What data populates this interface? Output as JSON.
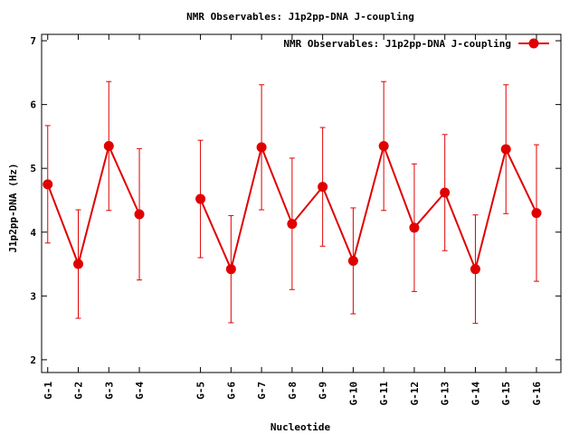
{
  "chart_data": {
    "type": "line",
    "title": "NMR Observables: J1p2pp-DNA J-coupling",
    "xlabel": "Nucleotide",
    "ylabel": "J1p2pp-DNA (Hz)",
    "ylim": [
      1.8,
      7.1
    ],
    "yticks": [
      2,
      3,
      4,
      5,
      6,
      7
    ],
    "grid": false,
    "legend_position": "top-right",
    "series_color": "#e00000",
    "series": [
      {
        "name": "NMR Observables: J1p2pp-DNA J-coupling",
        "segments": [
          [
            {
              "x": 1,
              "label": "G-1",
              "y": 4.75,
              "err": 0.92
            },
            {
              "x": 2,
              "label": "G-2",
              "y": 3.5,
              "err": 0.85
            },
            {
              "x": 3,
              "label": "G-3",
              "y": 5.35,
              "err": 1.01
            },
            {
              "x": 4,
              "label": "G-4",
              "y": 4.28,
              "err": 1.03
            }
          ],
          [
            {
              "x": 6,
              "label": "G-5",
              "y": 4.52,
              "err": 0.92
            },
            {
              "x": 7,
              "label": "G-6",
              "y": 3.42,
              "err": 0.84
            },
            {
              "x": 8,
              "label": "G-7",
              "y": 5.33,
              "err": 0.98
            },
            {
              "x": 9,
              "label": "G-8",
              "y": 4.13,
              "err": 1.03
            },
            {
              "x": 10,
              "label": "G-9",
              "y": 4.71,
              "err": 0.93
            },
            {
              "x": 11,
              "label": "G-10",
              "y": 3.55,
              "err": 0.83
            },
            {
              "x": 12,
              "label": "G-11",
              "y": 5.35,
              "err": 1.01
            },
            {
              "x": 13,
              "label": "G-12",
              "y": 4.07,
              "err": 1.0
            },
            {
              "x": 14,
              "label": "G-13",
              "y": 4.62,
              "err": 0.91
            },
            {
              "x": 15,
              "label": "G-14",
              "y": 3.42,
              "err": 0.85
            },
            {
              "x": 16,
              "label": "G-15",
              "y": 5.3,
              "err": 1.01
            },
            {
              "x": 17,
              "label": "G-16",
              "y": 4.3,
              "err": 1.07
            }
          ]
        ]
      }
    ]
  }
}
